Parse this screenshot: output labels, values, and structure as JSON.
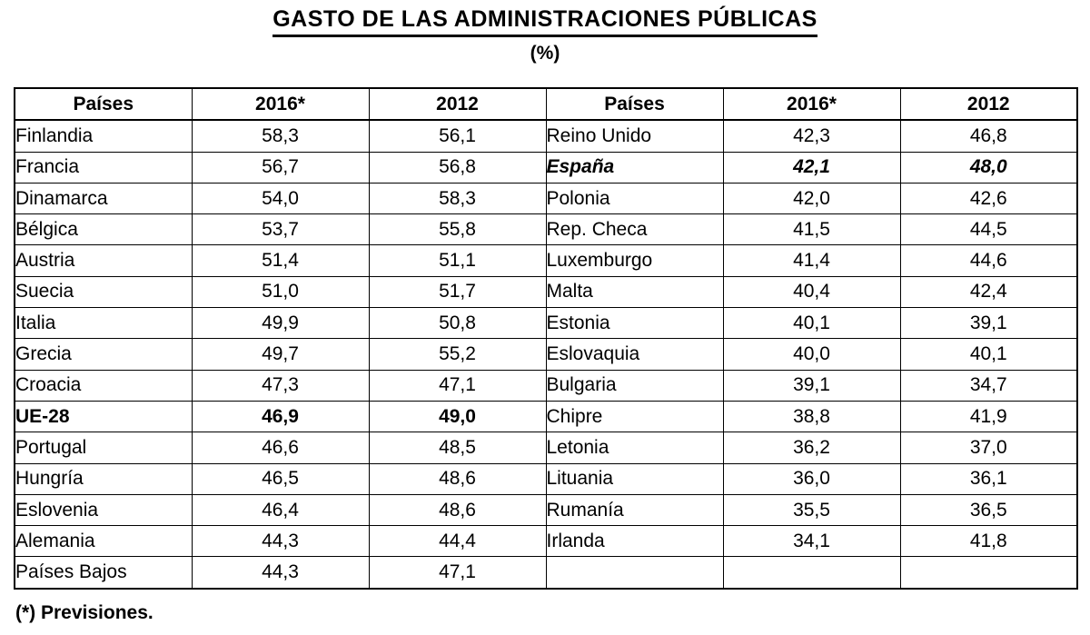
{
  "title": "GASTO DE LAS ADMINISTRACIONES PÚBLICAS",
  "subtitle": "(%)",
  "footnote": "(*) Previsiones.",
  "colors": {
    "text": "#000000",
    "background": "#ffffff",
    "border": "#000000"
  },
  "table": {
    "headers": [
      "Países",
      "2016*",
      "2012"
    ],
    "left_rows": [
      {
        "country": "Finlandia",
        "v2016": "58,3",
        "v2012": "56,1",
        "style": ""
      },
      {
        "country": "Francia",
        "v2016": "56,7",
        "v2012": "56,8",
        "style": ""
      },
      {
        "country": "Dinamarca",
        "v2016": "54,0",
        "v2012": "58,3",
        "style": ""
      },
      {
        "country": "Bélgica",
        "v2016": "53,7",
        "v2012": "55,8",
        "style": ""
      },
      {
        "country": "Austria",
        "v2016": "51,4",
        "v2012": "51,1",
        "style": ""
      },
      {
        "country": "Suecia",
        "v2016": "51,0",
        "v2012": "51,7",
        "style": ""
      },
      {
        "country": "Italia",
        "v2016": "49,9",
        "v2012": "50,8",
        "style": ""
      },
      {
        "country": "Grecia",
        "v2016": "49,7",
        "v2012": "55,2",
        "style": ""
      },
      {
        "country": "Croacia",
        "v2016": "47,3",
        "v2012": "47,1",
        "style": ""
      },
      {
        "country": "UE-28",
        "v2016": "46,9",
        "v2012": "49,0",
        "style": "bold"
      },
      {
        "country": "Portugal",
        "v2016": "46,6",
        "v2012": "48,5",
        "style": ""
      },
      {
        "country": "Hungría",
        "v2016": "46,5",
        "v2012": "48,6",
        "style": ""
      },
      {
        "country": "Eslovenia",
        "v2016": "46,4",
        "v2012": "48,6",
        "style": ""
      },
      {
        "country": "Alemania",
        "v2016": "44,3",
        "v2012": "44,4",
        "style": ""
      },
      {
        "country": "Países Bajos",
        "v2016": "44,3",
        "v2012": "47,1",
        "style": ""
      }
    ],
    "right_rows": [
      {
        "country": "Reino Unido",
        "v2016": "42,3",
        "v2012": "46,8",
        "style": ""
      },
      {
        "country": "España",
        "v2016": "42,1",
        "v2012": "48,0",
        "style": "bold-italic"
      },
      {
        "country": "Polonia",
        "v2016": "42,0",
        "v2012": "42,6",
        "style": ""
      },
      {
        "country": "Rep. Checa",
        "v2016": "41,5",
        "v2012": "44,5",
        "style": ""
      },
      {
        "country": "Luxemburgo",
        "v2016": "41,4",
        "v2012": "44,6",
        "style": ""
      },
      {
        "country": "Malta",
        "v2016": "40,4",
        "v2012": "42,4",
        "style": ""
      },
      {
        "country": "Estonia",
        "v2016": "40,1",
        "v2012": "39,1",
        "style": ""
      },
      {
        "country": "Eslovaquia",
        "v2016": "40,0",
        "v2012": "40,1",
        "style": ""
      },
      {
        "country": "Bulgaria",
        "v2016": "39,1",
        "v2012": "34,7",
        "style": ""
      },
      {
        "country": "Chipre",
        "v2016": "38,8",
        "v2012": "41,9",
        "style": ""
      },
      {
        "country": "Letonia",
        "v2016": "36,2",
        "v2012": "37,0",
        "style": ""
      },
      {
        "country": "Lituania",
        "v2016": "36,0",
        "v2012": "36,1",
        "style": ""
      },
      {
        "country": "Rumanía",
        "v2016": "35,5",
        "v2012": "36,5",
        "style": ""
      },
      {
        "country": "Irlanda",
        "v2016": "34,1",
        "v2012": "41,8",
        "style": ""
      },
      {
        "country": "",
        "v2016": "",
        "v2012": "",
        "style": ""
      }
    ]
  }
}
